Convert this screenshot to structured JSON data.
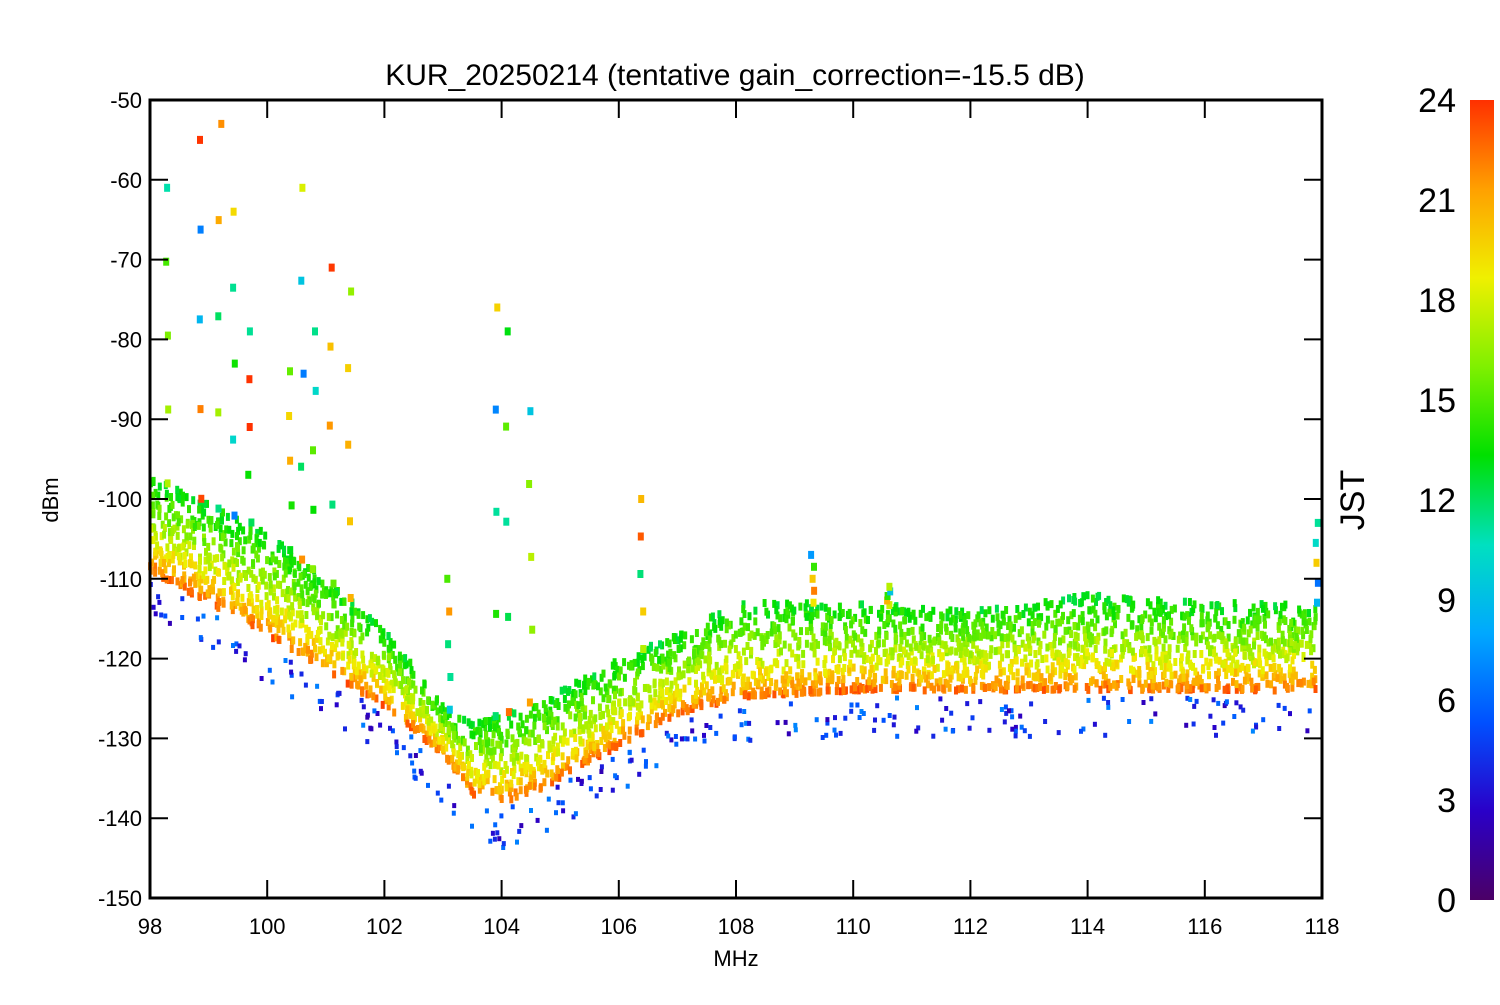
{
  "chart_data": {
    "type": "scatter",
    "title": "KUR_20250214 (tentative gain_correction=-15.5 dB)",
    "xlabel": "MHz",
    "ylabel": "dBm",
    "xlim": [
      98,
      118
    ],
    "ylim": [
      -150,
      -50
    ],
    "x_ticks": [
      98,
      100,
      102,
      104,
      106,
      108,
      110,
      112,
      114,
      116,
      118
    ],
    "x_tick_labels": [
      "98",
      "100",
      "102",
      "104",
      "106",
      "108",
      "110",
      "112",
      "114",
      "116",
      "118"
    ],
    "y_ticks": [
      -50,
      -60,
      -70,
      -80,
      -90,
      -100,
      -110,
      -120,
      -130,
      -140,
      -150
    ],
    "y_tick_labels": [
      "-50",
      "-60",
      "-70",
      "-80",
      "-90",
      "-100",
      "-110",
      "-120",
      "-130",
      "-140",
      "-150"
    ],
    "grid": false,
    "colorbar": {
      "label": "JST",
      "range": [
        0,
        24
      ],
      "ticks": [
        0,
        3,
        6,
        9,
        12,
        15,
        18,
        21,
        24
      ],
      "tick_labels": [
        "0",
        "3",
        "6",
        "9",
        "12",
        "15",
        "18",
        "21",
        "24"
      ],
      "placement": "right",
      "colormap": [
        "#4b0066",
        "#2a00c8",
        "#0050ff",
        "#00a8ff",
        "#00e0c0",
        "#00e000",
        "#80f000",
        "#f0f000",
        "#ffa000",
        "#ff3000"
      ]
    },
    "noise_floor_min_dbm": [
      [
        98,
        -109
      ],
      [
        100,
        -117
      ],
      [
        102,
        -126
      ],
      [
        103,
        -132
      ],
      [
        103.5,
        -137
      ],
      [
        104,
        -138
      ],
      [
        104.5,
        -137
      ],
      [
        105,
        -135
      ],
      [
        106,
        -131
      ],
      [
        107,
        -127
      ],
      [
        107.5,
        -126
      ],
      [
        108,
        -125
      ],
      [
        110,
        -124
      ],
      [
        112,
        -124
      ],
      [
        114,
        -124
      ],
      [
        116,
        -124
      ],
      [
        117.9,
        -124
      ]
    ],
    "noise_floor_max_dbm": [
      [
        98,
        -97
      ],
      [
        100,
        -104
      ],
      [
        102,
        -116
      ],
      [
        103,
        -126
      ],
      [
        103.5,
        -128
      ],
      [
        104,
        -127
      ],
      [
        105,
        -124
      ],
      [
        106,
        -120
      ],
      [
        107,
        -117
      ],
      [
        107.5,
        -115
      ],
      [
        108,
        -113
      ],
      [
        110,
        -113
      ],
      [
        112,
        -114
      ],
      [
        114,
        -112
      ],
      [
        116,
        -113
      ],
      [
        117.9,
        -113
      ]
    ],
    "peaks_mhz_dbm": [
      [
        98.3,
        -61
      ],
      [
        98.85,
        -55
      ],
      [
        99.2,
        -53
      ],
      [
        99.45,
        -64
      ],
      [
        99.7,
        -79
      ],
      [
        100.4,
        -84
      ],
      [
        100.6,
        -61
      ],
      [
        100.8,
        -79
      ],
      [
        101.1,
        -71
      ],
      [
        101.4,
        -74
      ],
      [
        103.1,
        -110
      ],
      [
        103.9,
        -76
      ],
      [
        104.1,
        -79
      ],
      [
        104.5,
        -89
      ],
      [
        106.4,
        -100
      ],
      [
        109.3,
        -107
      ],
      [
        110.6,
        -111
      ],
      [
        117.9,
        -103
      ]
    ]
  }
}
